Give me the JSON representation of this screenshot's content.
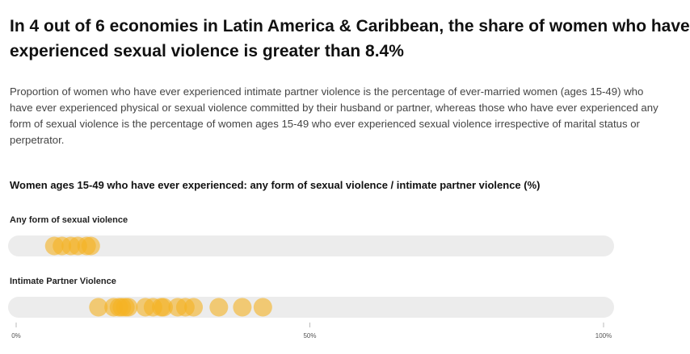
{
  "title_lines": [
    "In 4 out of 6 economies in Latin America & Caribbean, the share of women who have",
    "experienced sexual violence is greater than 8.4%"
  ],
  "description_lines": [
    "Proportion of women who have ever experienced intimate partner violence is the percentage of ever-married women (ages 15-49) who",
    "have ever experienced physical or sexual violence committed by their husband or partner, whereas those who have ever experienced any",
    "form of sexual violence is the percentage of women ages 15-49 who ever experienced sexual violence irrespective of marital status or",
    "perpetrator."
  ],
  "colors": {
    "dot": "#f5b323",
    "track": "#ececec",
    "tick": "#bbbbbb"
  },
  "chart_data": {
    "type": "scatter",
    "title": "Women ages 15-49 who have ever experienced: any form of sexual violence / intimate partner violence (%)",
    "xlim": [
      0,
      100
    ],
    "x_ticks": [
      "0%",
      "50%",
      "100%"
    ],
    "x_tick_values": [
      0,
      50,
      100
    ],
    "series": [
      {
        "name": "Any form of sexual violence",
        "values": [
          6.5,
          7.8,
          9.3,
          10.5,
          12.0,
          12.7
        ]
      },
      {
        "name": "Intimate Partner Violence",
        "values": [
          14.0,
          16.6,
          17.5,
          18.0,
          18.6,
          19.1,
          22.0,
          23.3,
          24.7,
          25.1,
          27.5,
          28.8,
          30.2,
          34.5,
          38.5,
          42.0
        ]
      }
    ]
  }
}
